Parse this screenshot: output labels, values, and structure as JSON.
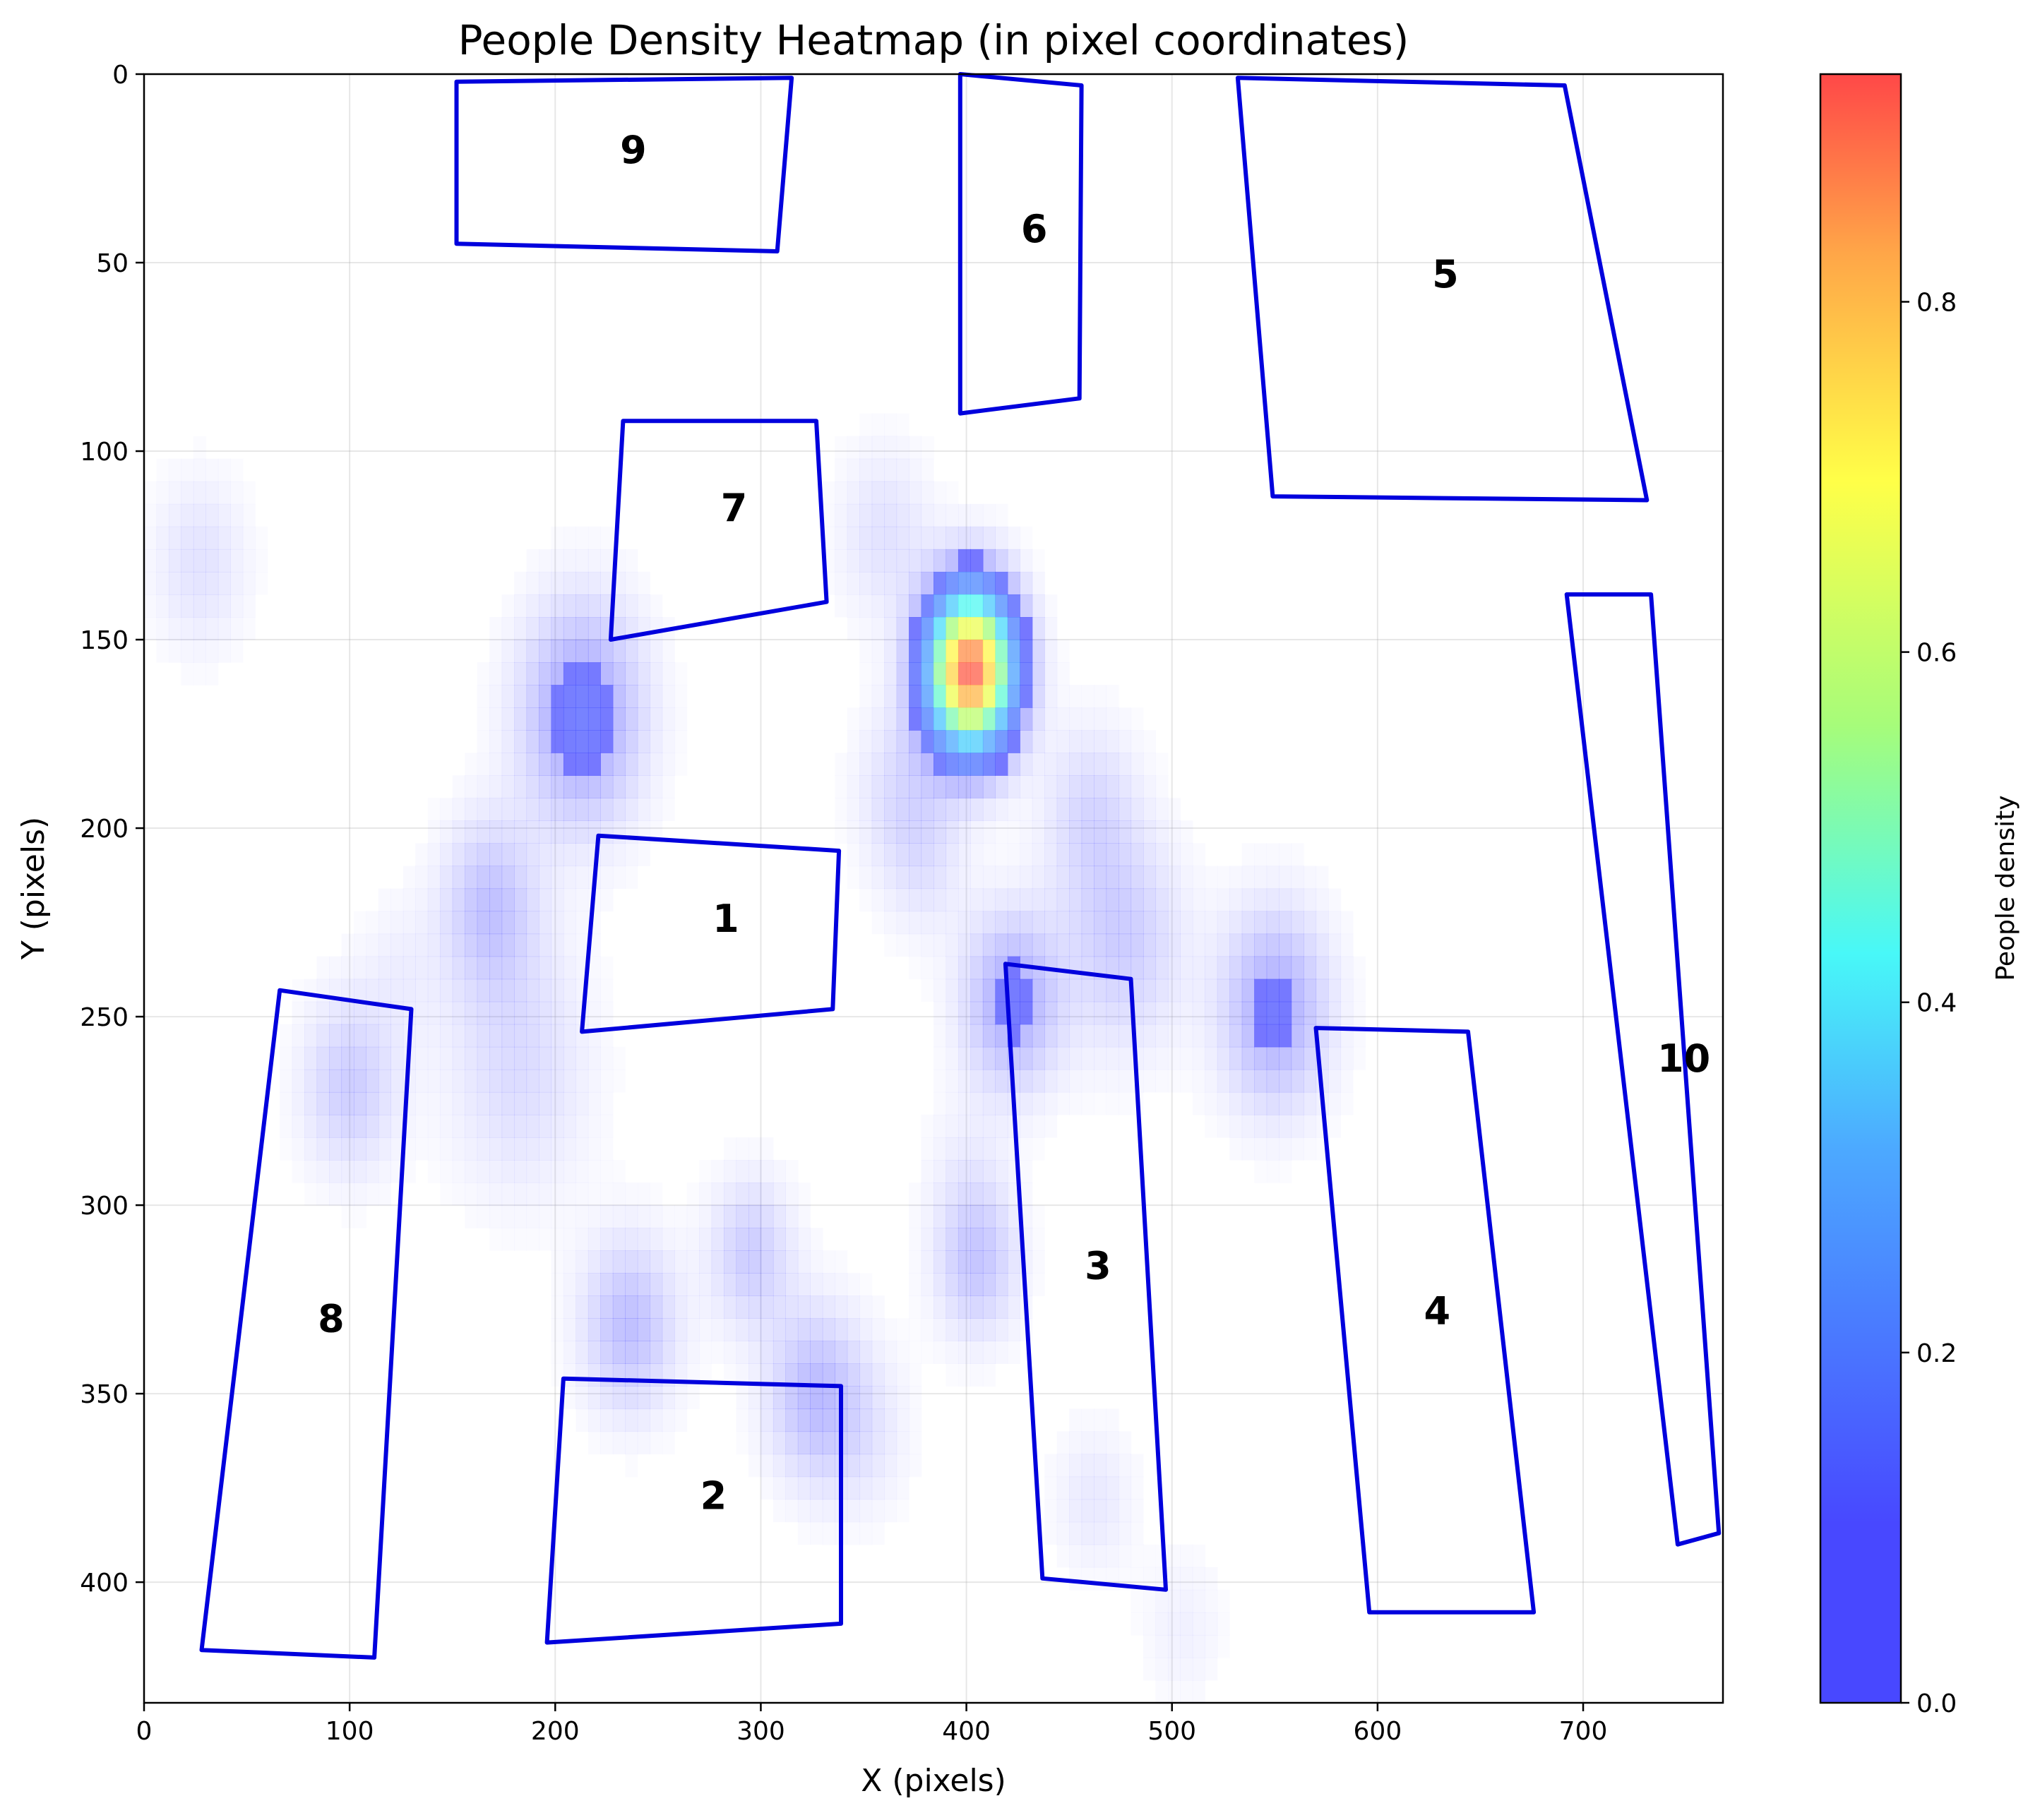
{
  "chart_data": {
    "type": "heatmap",
    "title": "People Density Heatmap (in pixel coordinates)",
    "xlabel": "X (pixels)",
    "ylabel": "Y (pixels)",
    "xlim": [
      0,
      768
    ],
    "ylim": [
      432,
      0
    ],
    "xticks": [
      0,
      100,
      200,
      300,
      400,
      500,
      600,
      700
    ],
    "yticks": [
      0,
      50,
      100,
      150,
      200,
      250,
      300,
      350,
      400
    ],
    "grid": true,
    "colorbar": {
      "label": "People density",
      "range": [
        0,
        0.93
      ],
      "ticks": [
        0.0,
        0.2,
        0.4,
        0.6,
        0.8
      ],
      "tick_labels": [
        "0.0",
        "0.2",
        "0.4",
        "0.6",
        "0.8"
      ],
      "colormap": "jet",
      "alpha": 0.7
    },
    "density_peaks": [
      {
        "x": 402,
        "y": 158,
        "value": 0.93,
        "spread": 14
      },
      {
        "x": 213,
        "y": 170,
        "value": 0.14,
        "spread": 20
      },
      {
        "x": 550,
        "y": 248,
        "value": 0.12,
        "spread": 18
      },
      {
        "x": 422,
        "y": 246,
        "value": 0.12,
        "spread": 16
      },
      {
        "x": 236,
        "y": 332,
        "value": 0.09,
        "spread": 16
      },
      {
        "x": 326,
        "y": 350,
        "value": 0.09,
        "spread": 16
      },
      {
        "x": 405,
        "y": 315,
        "value": 0.08,
        "spread": 14
      },
      {
        "x": 295,
        "y": 313,
        "value": 0.07,
        "spread": 14
      },
      {
        "x": 168,
        "y": 220,
        "value": 0.08,
        "spread": 16
      },
      {
        "x": 100,
        "y": 268,
        "value": 0.07,
        "spread": 16
      },
      {
        "x": 182,
        "y": 262,
        "value": 0.05,
        "spread": 24
      },
      {
        "x": 476,
        "y": 230,
        "value": 0.07,
        "spread": 20
      },
      {
        "x": 460,
        "y": 195,
        "value": 0.05,
        "spread": 16
      },
      {
        "x": 370,
        "y": 190,
        "value": 0.05,
        "spread": 16
      },
      {
        "x": 380,
        "y": 210,
        "value": 0.03,
        "spread": 14
      },
      {
        "x": 360,
        "y": 122,
        "value": 0.04,
        "spread": 16
      },
      {
        "x": 27,
        "y": 130,
        "value": 0.04,
        "spread": 16
      },
      {
        "x": 462,
        "y": 378,
        "value": 0.03,
        "spread": 14
      },
      {
        "x": 505,
        "y": 412,
        "value": 0.02,
        "spread": 14
      },
      {
        "x": 350,
        "y": 360,
        "value": 0.03,
        "spread": 16
      },
      {
        "x": 400,
        "y": 290,
        "value": 0.02,
        "spread": 14
      },
      {
        "x": 125,
        "y": 238,
        "value": 0.02,
        "spread": 14
      }
    ],
    "zones": [
      {
        "id": "1",
        "polygon": [
          [
            221,
            202
          ],
          [
            338,
            206
          ],
          [
            335,
            248
          ],
          [
            213,
            254
          ]
        ],
        "label_pos": [
          283,
          224
        ]
      },
      {
        "id": "2",
        "polygon": [
          [
            204,
            346
          ],
          [
            339,
            348
          ],
          [
            339,
            411
          ],
          [
            196,
            416
          ]
        ],
        "label_pos": [
          277,
          377
        ]
      },
      {
        "id": "3",
        "polygon": [
          [
            419,
            236
          ],
          [
            480,
            240
          ],
          [
            497,
            402
          ],
          [
            437,
            399
          ]
        ],
        "label_pos": [
          464,
          316
        ]
      },
      {
        "id": "4",
        "polygon": [
          [
            570,
            253
          ],
          [
            644,
            254
          ],
          [
            676,
            408
          ],
          [
            596,
            408
          ]
        ],
        "label_pos": [
          629,
          328
        ]
      },
      {
        "id": "5",
        "polygon": [
          [
            532,
            1
          ],
          [
            691,
            3
          ],
          [
            731,
            113
          ],
          [
            549,
            112
          ]
        ],
        "label_pos": [
          633,
          53
        ]
      },
      {
        "id": "6",
        "polygon": [
          [
            397,
            0
          ],
          [
            456,
            3
          ],
          [
            455,
            86
          ],
          [
            397,
            90
          ]
        ],
        "label_pos": [
          433,
          41
        ]
      },
      {
        "id": "7",
        "polygon": [
          [
            233,
            92
          ],
          [
            327,
            92
          ],
          [
            332,
            140
          ],
          [
            227,
            150
          ]
        ],
        "label_pos": [
          287,
          115
        ]
      },
      {
        "id": "8",
        "polygon": [
          [
            66,
            243
          ],
          [
            130,
            248
          ],
          [
            112,
            420
          ],
          [
            28,
            418
          ]
        ],
        "label_pos": [
          91,
          330
        ]
      },
      {
        "id": "9",
        "polygon": [
          [
            152,
            2
          ],
          [
            315,
            1
          ],
          [
            308,
            47
          ],
          [
            152,
            45
          ]
        ],
        "label_pos": [
          238,
          20
        ]
      },
      {
        "id": "10",
        "polygon": [
          [
            692,
            138
          ],
          [
            733,
            138
          ],
          [
            766,
            387
          ],
          [
            746,
            390
          ]
        ],
        "label_pos": [
          749,
          261
        ]
      }
    ],
    "zone_color": "#0000dd"
  }
}
